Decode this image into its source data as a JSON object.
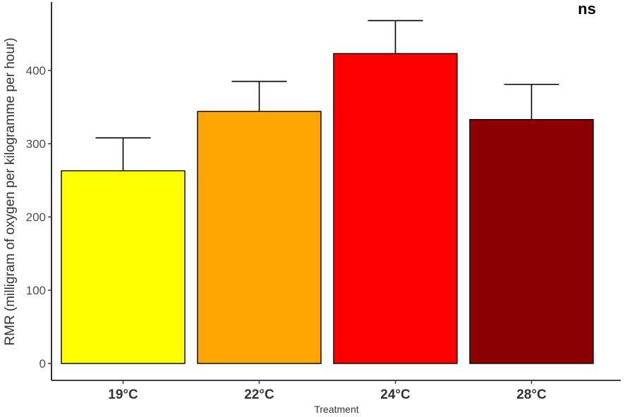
{
  "chart_data": {
    "type": "bar",
    "categories": [
      "19°C",
      "22°C",
      "24°C",
      "28°C"
    ],
    "values": [
      263,
      344,
      423,
      333
    ],
    "error_upper": [
      308,
      385,
      468,
      381
    ],
    "colors": [
      "#ffff00",
      "#ffa500",
      "#ff0000",
      "#8b0000"
    ],
    "xlabel": "Treatment",
    "ylabel": "RMR (milligram of oxygen per kilogramme per hour)",
    "ylim": [
      0,
      488
    ],
    "yticks": [
      0,
      100,
      200,
      300,
      400
    ],
    "annotation": "ns",
    "grid": false,
    "legend": "none"
  }
}
